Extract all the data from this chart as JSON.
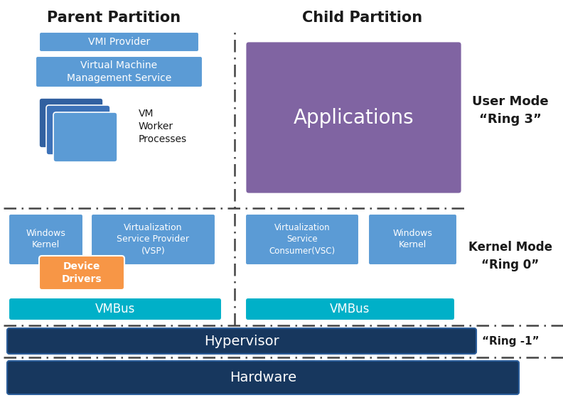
{
  "title_parent": "Parent Partition",
  "title_child": "Child Partition",
  "label_user_mode": "User Mode",
  "label_ring3": "“Ring 3”",
  "label_kernel_mode": "Kernel Mode",
  "label_ring0": "“Ring 0”",
  "label_ring_minus1": "“Ring -1”",
  "color_blue_mid": "#4472C4",
  "color_blue_light": "#5B9BD5",
  "color_cyan": "#00B0C8",
  "color_purple": "#8064A2",
  "color_orange": "#F79646",
  "color_hypervisor": "#17375E",
  "color_hardware": "#17375E",
  "bg_color": "#FFFFFF",
  "text_white": "#FFFFFF",
  "text_dark": "#1A1A1A"
}
